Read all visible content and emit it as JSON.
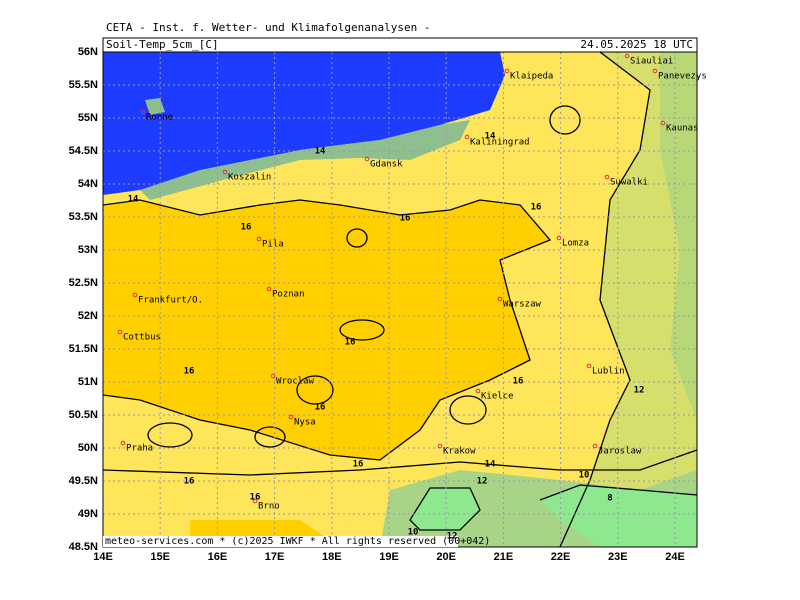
{
  "header": {
    "title": "CETA - Inst. f. Wetter- und Klimafolgenanalysen -",
    "field": "Soil-Temp_5cm_[C]",
    "valid": "24.05.2025 18 UTC"
  },
  "lat_labels": [
    "56N",
    "55.5N",
    "55N",
    "54.5N",
    "54N",
    "53.5N",
    "53N",
    "52.5N",
    "52N",
    "51.5N",
    "51N",
    "50.5N",
    "50N",
    "49.5N",
    "49N",
    "48.5N"
  ],
  "lon_labels": [
    "14E",
    "15E",
    "16E",
    "17E",
    "18E",
    "19E",
    "20E",
    "21E",
    "22E",
    "23E",
    "24E"
  ],
  "cities": [
    "Klaipeda",
    "Siauliai",
    "Panevezys",
    "Ronne",
    "Kaunas",
    "Kaliningrad",
    "Gdansk",
    "Koszalin",
    "Suwalki",
    "Pila",
    "Lomza",
    "Poznan",
    "Frankfurt/O.",
    "Warszaw",
    "Cottbus",
    "Lublin",
    "Wroclaw",
    "Kielce",
    "Nysa",
    "Praha",
    "Krakow",
    "Jaroslaw",
    "Brno"
  ],
  "contour_labels": [
    "14",
    "14",
    "14",
    "16",
    "16",
    "16",
    "16",
    "16",
    "16",
    "16",
    "16",
    "16",
    "16",
    "14",
    "12",
    "12",
    "10",
    "8",
    "10",
    "12"
  ],
  "footer": "meteo-services.com * (c)2025 IWKF * All rights reserved (00+042)"
}
